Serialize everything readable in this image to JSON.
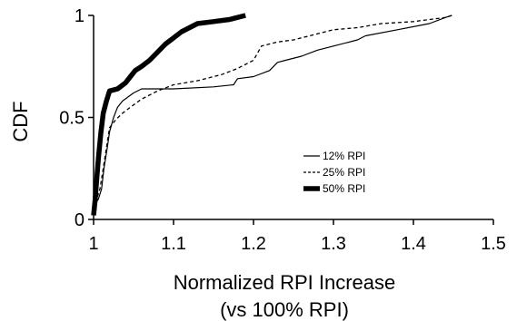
{
  "chart_data": {
    "type": "line",
    "title": "",
    "xlabel_lines": [
      "Normalized RPI Increase",
      "(vs 100% RPI)"
    ],
    "ylabel": "CDF",
    "xlim": [
      1,
      1.5
    ],
    "ylim": [
      0,
      1
    ],
    "xticks": [
      1,
      1.1,
      1.2,
      1.3,
      1.4,
      1.5
    ],
    "xtick_labels": [
      "1",
      "1.1",
      "1.2",
      "1.3",
      "1.4",
      "1.5"
    ],
    "yticks": [
      0,
      0.5,
      1
    ],
    "ytick_labels": [
      "0",
      "0.5",
      "1"
    ],
    "grid": false,
    "legend_position": "center-right",
    "series": [
      {
        "name": "12% RPI",
        "style": "solid-thin",
        "color": "#000000",
        "x": [
          1.0,
          1.003,
          1.006,
          1.01,
          1.013,
          1.017,
          1.02,
          1.025,
          1.03,
          1.036,
          1.043,
          1.05,
          1.06,
          1.1,
          1.15,
          1.175,
          1.18,
          1.2,
          1.22,
          1.23,
          1.24,
          1.26,
          1.28,
          1.3,
          1.33,
          1.34,
          1.38,
          1.42,
          1.44,
          1.448
        ],
        "y": [
          0.02,
          0.08,
          0.1,
          0.15,
          0.25,
          0.35,
          0.43,
          0.5,
          0.55,
          0.58,
          0.6,
          0.62,
          0.64,
          0.64,
          0.65,
          0.66,
          0.69,
          0.7,
          0.73,
          0.77,
          0.78,
          0.8,
          0.83,
          0.85,
          0.88,
          0.9,
          0.93,
          0.96,
          0.99,
          1.0
        ]
      },
      {
        "name": "25% RPI",
        "style": "dashed",
        "color": "#000000",
        "x": [
          1.0,
          1.004,
          1.008,
          1.012,
          1.016,
          1.02,
          1.028,
          1.036,
          1.046,
          1.06,
          1.08,
          1.1,
          1.13,
          1.16,
          1.18,
          1.2,
          1.21,
          1.23,
          1.25,
          1.27,
          1.28,
          1.3,
          1.33,
          1.36,
          1.4,
          1.42,
          1.44,
          1.448
        ],
        "y": [
          0.02,
          0.1,
          0.15,
          0.25,
          0.35,
          0.45,
          0.49,
          0.52,
          0.55,
          0.59,
          0.63,
          0.66,
          0.68,
          0.71,
          0.74,
          0.78,
          0.85,
          0.87,
          0.88,
          0.9,
          0.91,
          0.93,
          0.94,
          0.96,
          0.97,
          0.98,
          0.99,
          1.0
        ]
      },
      {
        "name": "50% RPI",
        "style": "solid-thick",
        "color": "#000000",
        "x": [
          1.0,
          1.002,
          1.004,
          1.006,
          1.009,
          1.012,
          1.016,
          1.02,
          1.03,
          1.04,
          1.046,
          1.052,
          1.06,
          1.07,
          1.08,
          1.09,
          1.1,
          1.11,
          1.12,
          1.13,
          1.15,
          1.17,
          1.19
        ],
        "y": [
          0.02,
          0.1,
          0.2,
          0.3,
          0.42,
          0.52,
          0.58,
          0.63,
          0.64,
          0.67,
          0.7,
          0.73,
          0.75,
          0.78,
          0.82,
          0.86,
          0.89,
          0.92,
          0.94,
          0.96,
          0.97,
          0.98,
          1.0
        ]
      }
    ]
  }
}
